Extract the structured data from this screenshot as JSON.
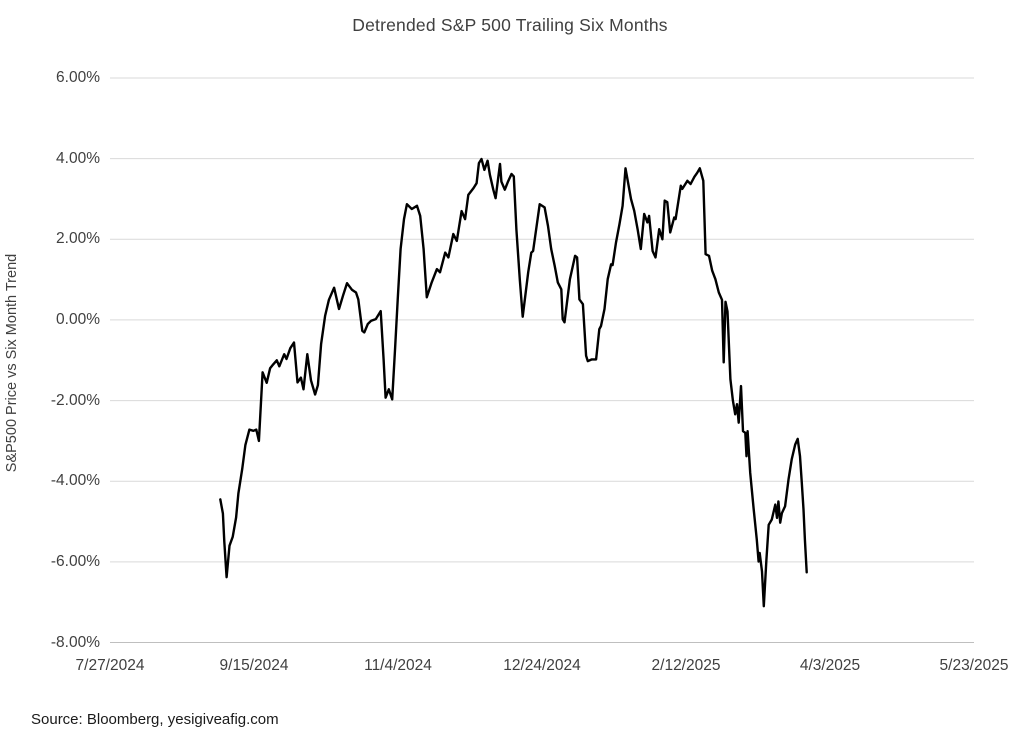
{
  "title": "Detrended S&P 500 Trailing Six Months",
  "source": "Source: Bloomberg, yesigiveafig.com",
  "colors": {
    "line": "#000000",
    "gridline": "#d9d9d9",
    "axis_line": "#bfbfbf",
    "chart_text": "#404040",
    "source_text": "#1a1a1a",
    "background": "#ffffff"
  },
  "chart_data": {
    "type": "line",
    "title": "Detrended S&P 500 Trailing Six Months",
    "xlabel": "",
    "ylabel": "S&P500 Price vs Six Month Trend",
    "legend": "none",
    "grid": "horizontal",
    "x_axis": {
      "tick_labels": [
        "7/27/2024",
        "9/15/2024",
        "11/4/2024",
        "12/24/2024",
        "2/12/2025",
        "4/3/2025",
        "5/23/2025"
      ],
      "tick_days": [
        0,
        50,
        100,
        150,
        200,
        250,
        300
      ],
      "range_days": [
        0,
        300
      ],
      "units": "days since 7/27/2024"
    },
    "y_axis": {
      "tick_labels": [
        "6.00%",
        "4.00%",
        "2.00%",
        "0.00%",
        "-2.00%",
        "-4.00%",
        "-6.00%",
        "-8.00%"
      ],
      "tick_values": [
        6,
        4,
        2,
        0,
        -2,
        -4,
        -6,
        -8
      ],
      "range": [
        -8,
        6
      ],
      "units": "percent"
    },
    "series": [
      {
        "name": "S&P500 price vs six month trend (%)",
        "color": "#000000",
        "points": [
          [
            38.3,
            -4.45
          ],
          [
            39.2,
            -4.8
          ],
          [
            39.7,
            -5.5
          ],
          [
            40.5,
            -6.38
          ],
          [
            41.5,
            -5.6
          ],
          [
            42.6,
            -5.38
          ],
          [
            43.8,
            -4.9
          ],
          [
            44.6,
            -4.3
          ],
          [
            45.9,
            -3.7
          ],
          [
            47.0,
            -3.1
          ],
          [
            48.4,
            -2.72
          ],
          [
            49.8,
            -2.75
          ],
          [
            50.8,
            -2.72
          ],
          [
            51.7,
            -3.0
          ],
          [
            53.0,
            -1.3
          ],
          [
            54.4,
            -1.56
          ],
          [
            55.6,
            -1.2
          ],
          [
            56.7,
            -1.1
          ],
          [
            57.9,
            -1.0
          ],
          [
            58.8,
            -1.15
          ],
          [
            60.5,
            -0.85
          ],
          [
            61.3,
            -0.97
          ],
          [
            62.6,
            -0.7
          ],
          [
            63.9,
            -0.56
          ],
          [
            65.1,
            -1.55
          ],
          [
            66.3,
            -1.43
          ],
          [
            67.2,
            -1.72
          ],
          [
            68.5,
            -0.85
          ],
          [
            69.8,
            -1.5
          ],
          [
            71.2,
            -1.85
          ],
          [
            72.2,
            -1.62
          ],
          [
            73.3,
            -0.6
          ],
          [
            74.7,
            0.1
          ],
          [
            76.0,
            0.5
          ],
          [
            77.8,
            0.8
          ],
          [
            79.5,
            0.27
          ],
          [
            80.9,
            0.6
          ],
          [
            82.3,
            0.91
          ],
          [
            84.0,
            0.75
          ],
          [
            85.4,
            0.68
          ],
          [
            86.2,
            0.51
          ],
          [
            87.6,
            -0.27
          ],
          [
            88.3,
            -0.31
          ],
          [
            89.5,
            -0.1
          ],
          [
            90.7,
            -0.02
          ],
          [
            92.3,
            0.02
          ],
          [
            94.0,
            0.22
          ],
          [
            95.0,
            -0.98
          ],
          [
            95.7,
            -1.93
          ],
          [
            96.8,
            -1.72
          ],
          [
            98.0,
            -1.97
          ],
          [
            99.0,
            -0.7
          ],
          [
            99.9,
            0.5
          ],
          [
            100.9,
            1.76
          ],
          [
            102.1,
            2.5
          ],
          [
            103.1,
            2.87
          ],
          [
            104.8,
            2.75
          ],
          [
            106.6,
            2.83
          ],
          [
            107.7,
            2.58
          ],
          [
            108.9,
            1.76
          ],
          [
            110.0,
            0.56
          ],
          [
            111.7,
            0.93
          ],
          [
            113.5,
            1.26
          ],
          [
            114.6,
            1.18
          ],
          [
            116.4,
            1.67
          ],
          [
            117.5,
            1.55
          ],
          [
            119.2,
            2.13
          ],
          [
            120.4,
            1.96
          ],
          [
            122.1,
            2.7
          ],
          [
            123.3,
            2.5
          ],
          [
            124.4,
            3.1
          ],
          [
            126.2,
            3.27
          ],
          [
            127.3,
            3.39
          ],
          [
            128.1,
            3.89
          ],
          [
            129.0,
            3.99
          ],
          [
            130.0,
            3.72
          ],
          [
            131.1,
            3.95
          ],
          [
            131.9,
            3.6
          ],
          [
            133.1,
            3.23
          ],
          [
            133.9,
            3.02
          ],
          [
            135.4,
            3.87
          ],
          [
            135.9,
            3.43
          ],
          [
            137.1,
            3.23
          ],
          [
            138.2,
            3.43
          ],
          [
            139.4,
            3.62
          ],
          [
            140.2,
            3.56
          ],
          [
            141.1,
            2.24
          ],
          [
            142.3,
            1.0
          ],
          [
            143.3,
            0.08
          ],
          [
            145.2,
            1.18
          ],
          [
            146.3,
            1.67
          ],
          [
            146.9,
            1.71
          ],
          [
            149.2,
            2.87
          ],
          [
            150.9,
            2.79
          ],
          [
            152.1,
            2.33
          ],
          [
            153.2,
            1.76
          ],
          [
            154.4,
            1.34
          ],
          [
            155.5,
            0.93
          ],
          [
            156.7,
            0.76
          ],
          [
            157.2,
            0.02
          ],
          [
            157.8,
            -0.06
          ],
          [
            159.7,
            1.01
          ],
          [
            161.5,
            1.59
          ],
          [
            162.2,
            1.55
          ],
          [
            163.0,
            0.51
          ],
          [
            164.2,
            0.39
          ],
          [
            165.3,
            -0.89
          ],
          [
            165.9,
            -1.02
          ],
          [
            167.3,
            -0.98
          ],
          [
            168.8,
            -0.98
          ],
          [
            169.9,
            -0.23
          ],
          [
            170.5,
            -0.15
          ],
          [
            171.7,
            0.27
          ],
          [
            172.8,
            1.01
          ],
          [
            174.0,
            1.38
          ],
          [
            174.5,
            1.36
          ],
          [
            175.7,
            1.92
          ],
          [
            176.9,
            2.38
          ],
          [
            178.0,
            2.83
          ],
          [
            179.0,
            3.76
          ],
          [
            180.9,
            3.0
          ],
          [
            182.0,
            2.71
          ],
          [
            183.2,
            2.25
          ],
          [
            184.3,
            1.76
          ],
          [
            185.5,
            2.63
          ],
          [
            186.6,
            2.42
          ],
          [
            187.2,
            2.58
          ],
          [
            188.4,
            1.71
          ],
          [
            189.4,
            1.55
          ],
          [
            190.7,
            2.25
          ],
          [
            191.8,
            2.0
          ],
          [
            192.6,
            2.96
          ],
          [
            193.5,
            2.92
          ],
          [
            194.5,
            2.17
          ],
          [
            195.9,
            2.54
          ],
          [
            196.4,
            2.5
          ],
          [
            198.2,
            3.33
          ],
          [
            198.7,
            3.25
          ],
          [
            200.5,
            3.45
          ],
          [
            201.6,
            3.37
          ],
          [
            202.9,
            3.55
          ],
          [
            203.9,
            3.65
          ],
          [
            204.8,
            3.76
          ],
          [
            206.0,
            3.45
          ],
          [
            206.8,
            1.63
          ],
          [
            208.0,
            1.59
          ],
          [
            209.1,
            1.22
          ],
          [
            210.2,
            1.01
          ],
          [
            211.4,
            0.68
          ],
          [
            212.5,
            0.5
          ],
          [
            213.1,
            -1.05
          ],
          [
            213.7,
            0.45
          ],
          [
            214.4,
            0.21
          ],
          [
            215.4,
            -1.47
          ],
          [
            216.3,
            -2.0
          ],
          [
            217.1,
            -2.34
          ],
          [
            217.7,
            -2.09
          ],
          [
            218.3,
            -2.55
          ],
          [
            219.1,
            -1.64
          ],
          [
            219.8,
            -2.76
          ],
          [
            220.6,
            -2.8
          ],
          [
            221.0,
            -3.38
          ],
          [
            221.4,
            -2.76
          ],
          [
            222.3,
            -3.79
          ],
          [
            223.5,
            -4.7
          ],
          [
            224.6,
            -5.45
          ],
          [
            225.2,
            -5.99
          ],
          [
            225.6,
            -5.78
          ],
          [
            226.4,
            -6.24
          ],
          [
            227.0,
            -7.1
          ],
          [
            227.9,
            -5.95
          ],
          [
            228.7,
            -5.08
          ],
          [
            229.8,
            -4.95
          ],
          [
            231.0,
            -4.58
          ],
          [
            231.6,
            -4.91
          ],
          [
            232.1,
            -4.5
          ],
          [
            232.7,
            -5.03
          ],
          [
            233.3,
            -4.79
          ],
          [
            234.4,
            -4.62
          ],
          [
            235.6,
            -3.96
          ],
          [
            236.7,
            -3.46
          ],
          [
            237.9,
            -3.09
          ],
          [
            238.8,
            -2.95
          ],
          [
            239.6,
            -3.38
          ],
          [
            240.2,
            -4.04
          ],
          [
            240.8,
            -4.7
          ],
          [
            241.3,
            -5.45
          ],
          [
            241.9,
            -6.26
          ]
        ]
      }
    ]
  }
}
